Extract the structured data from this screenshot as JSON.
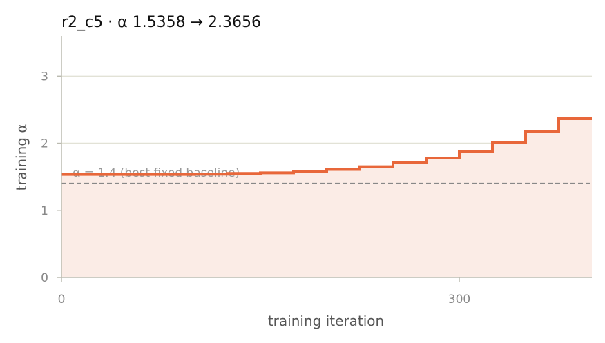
{
  "chart_data": {
    "type": "line",
    "step": true,
    "title": "r2_c5   ·   α 1.5358 → 2.3656",
    "xlabel": "training iteration",
    "ylabel": "training α",
    "xlim": [
      0,
      400
    ],
    "ylim": [
      0,
      3.6
    ],
    "xticks": [
      0,
      300
    ],
    "yticks": [
      0,
      1,
      2,
      3
    ],
    "grid": "horizontal",
    "colors": {
      "line": "#e8673a",
      "fill": "#fbece6",
      "baseline": "#888888",
      "grid": "#e2e2d6",
      "axis": "#bbbbb0"
    },
    "series": [
      {
        "x": [
          0,
          75,
          100,
          125,
          150,
          175,
          200,
          225,
          250,
          275,
          300,
          325,
          350,
          375,
          400
        ],
        "y": [
          1.536,
          1.536,
          1.54,
          1.55,
          1.56,
          1.58,
          1.61,
          1.65,
          1.71,
          1.78,
          1.88,
          2.01,
          2.17,
          2.3656,
          2.3656
        ]
      }
    ],
    "baseline": {
      "y": 1.4,
      "label": "α = 1.4 (best fixed baseline)"
    }
  }
}
